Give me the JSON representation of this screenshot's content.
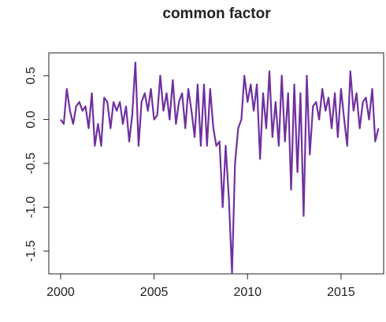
{
  "chart_data": {
    "type": "line",
    "title": "common factor",
    "x": [
      2000,
      2000.17,
      2000.33,
      2000.5,
      2000.67,
      2000.83,
      2001,
      2001.17,
      2001.33,
      2001.5,
      2001.67,
      2001.83,
      2002,
      2002.17,
      2002.33,
      2002.5,
      2002.67,
      2002.83,
      2003,
      2003.17,
      2003.33,
      2003.5,
      2003.67,
      2003.83,
      2004,
      2004.17,
      2004.33,
      2004.5,
      2004.67,
      2004.83,
      2005,
      2005.17,
      2005.33,
      2005.5,
      2005.67,
      2005.83,
      2006,
      2006.17,
      2006.33,
      2006.5,
      2006.67,
      2006.83,
      2007,
      2007.17,
      2007.33,
      2007.5,
      2007.67,
      2007.83,
      2008,
      2008.17,
      2008.33,
      2008.5,
      2008.67,
      2008.83,
      2009,
      2009.17,
      2009.33,
      2009.5,
      2009.67,
      2009.83,
      2010,
      2010.17,
      2010.33,
      2010.5,
      2010.67,
      2010.83,
      2011,
      2011.17,
      2011.33,
      2011.5,
      2011.67,
      2011.83,
      2012,
      2012.17,
      2012.33,
      2012.5,
      2012.67,
      2012.83,
      2013,
      2013.17,
      2013.33,
      2013.5,
      2013.67,
      2013.83,
      2014,
      2014.17,
      2014.33,
      2014.5,
      2014.67,
      2014.83,
      2015,
      2015.17,
      2015.33,
      2015.5,
      2015.67,
      2015.83,
      2016,
      2016.17,
      2016.33,
      2016.5,
      2016.67,
      2016.83,
      2017
    ],
    "series": [
      {
        "name": "common factor",
        "color": "#7030a0",
        "values": [
          0,
          -0.05,
          0.35,
          0.1,
          -0.05,
          0.15,
          0.2,
          0.1,
          0.15,
          -0.1,
          0.3,
          -0.3,
          -0.05,
          -0.3,
          0.25,
          0.2,
          -0.1,
          0.2,
          0.1,
          0.2,
          -0.05,
          0.15,
          -0.25,
          0.05,
          0.65,
          -0.3,
          0.2,
          0.3,
          0.1,
          0.35,
          0,
          0.05,
          0.5,
          0.1,
          0.3,
          0,
          0.45,
          -0.05,
          0.2,
          0.3,
          -0.1,
          0.35,
          0.1,
          -0.2,
          0.4,
          -0.3,
          0.4,
          -0.3,
          0.35,
          -0.1,
          -0.3,
          -0.25,
          -1,
          -0.3,
          -0.9,
          -1.75,
          -0.5,
          -0.1,
          0,
          0.5,
          0.2,
          0.4,
          0.1,
          0.4,
          -0.45,
          0.3,
          -0.1,
          0.55,
          -0.2,
          0.2,
          -0.3,
          0.5,
          -0.25,
          0.3,
          -0.8,
          0.4,
          -0.6,
          0.3,
          -1.1,
          0.5,
          -0.4,
          0.15,
          0.2,
          0,
          0.35,
          0.1,
          0.25,
          -0.1,
          0.3,
          -0.2,
          0.35,
          0,
          -0.3,
          0.55,
          0.1,
          0.3,
          -0.1,
          0.2,
          0.25,
          0,
          0.35,
          -0.25,
          -0.1
        ]
      }
    ],
    "xlim": [
      1999.37,
      2017.28
    ],
    "xticks": [
      2000,
      2005,
      2010,
      2015
    ],
    "ylim": [
      -1.76,
      0.76
    ],
    "yticks": [
      -1.5,
      -1,
      -0.5,
      0,
      0.5
    ],
    "yticklabels": [
      "-1.5",
      "-1.0",
      "-0.5",
      "0.0",
      "0.5"
    ]
  }
}
